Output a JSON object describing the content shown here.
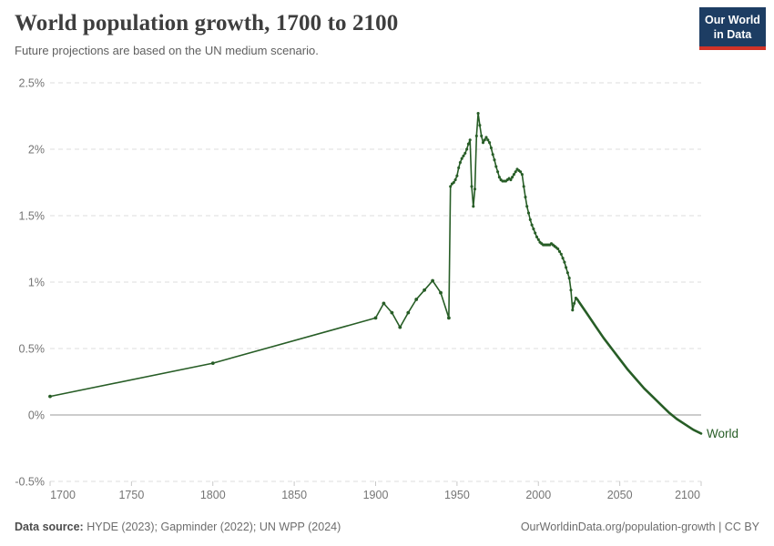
{
  "header": {
    "title": "World population growth, 1700 to 2100",
    "subtitle": "Future projections are based on the UN medium scenario.",
    "logo": {
      "line1": "Our World",
      "line2": "in Data",
      "bg_color": "#1d3d63",
      "accent_color": "#d13328"
    }
  },
  "footer": {
    "source_label": "Data source:",
    "sources": " HYDE (2023); Gapminder (2022); UN WPP (2024)",
    "attribution": "OurWorldinData.org/population-growth | CC BY"
  },
  "chart_data": {
    "type": "line",
    "title": "World population growth, 1700 to 2100",
    "subtitle": "Future projections are based on the UN medium scenario.",
    "unit": "%",
    "xlim": [
      1700,
      2100
    ],
    "ylim": [
      -0.5,
      2.5
    ],
    "x_ticks": [
      1700,
      1750,
      1800,
      1850,
      1900,
      1950,
      2000,
      2050,
      2100
    ],
    "y_ticks": [
      {
        "value": 2.5,
        "label": "2.5%"
      },
      {
        "value": 2.0,
        "label": "2%"
      },
      {
        "value": 1.5,
        "label": "1.5%"
      },
      {
        "value": 1.0,
        "label": "1%"
      },
      {
        "value": 0.5,
        "label": "0.5%"
      },
      {
        "value": 0.0,
        "label": "0%"
      },
      {
        "value": -0.5,
        "label": "-0.5%"
      }
    ],
    "grid": "horizontal-dashed",
    "zero_line": true,
    "legend": "end-of-line-label",
    "line_color": "#275d26",
    "projection_start_year": 2024,
    "series": [
      {
        "name": "World",
        "points": [
          [
            1700,
            0.14
          ],
          [
            1800,
            0.39
          ],
          [
            1900,
            0.73
          ],
          [
            1905,
            0.84
          ],
          [
            1910,
            0.77
          ],
          [
            1915,
            0.66
          ],
          [
            1920,
            0.77
          ],
          [
            1925,
            0.87
          ],
          [
            1930,
            0.94
          ],
          [
            1935,
            1.01
          ],
          [
            1940,
            0.92
          ],
          [
            1945,
            0.73
          ],
          [
            1946,
            1.72
          ],
          [
            1947,
            1.74
          ],
          [
            1948,
            1.75
          ],
          [
            1949,
            1.77
          ],
          [
            1950,
            1.8
          ],
          [
            1951,
            1.86
          ],
          [
            1952,
            1.9
          ],
          [
            1953,
            1.93
          ],
          [
            1954,
            1.95
          ],
          [
            1955,
            1.97
          ],
          [
            1956,
            2.0
          ],
          [
            1957,
            2.04
          ],
          [
            1958,
            2.07
          ],
          [
            1959,
            1.72
          ],
          [
            1960,
            1.57
          ],
          [
            1961,
            1.7
          ],
          [
            1962,
            2.1
          ],
          [
            1963,
            2.27
          ],
          [
            1964,
            2.18
          ],
          [
            1965,
            2.1
          ],
          [
            1966,
            2.05
          ],
          [
            1967,
            2.07
          ],
          [
            1968,
            2.09
          ],
          [
            1969,
            2.07
          ],
          [
            1970,
            2.05
          ],
          [
            1971,
            2.01
          ],
          [
            1972,
            1.96
          ],
          [
            1973,
            1.92
          ],
          [
            1974,
            1.87
          ],
          [
            1975,
            1.83
          ],
          [
            1976,
            1.79
          ],
          [
            1977,
            1.77
          ],
          [
            1978,
            1.76
          ],
          [
            1979,
            1.76
          ],
          [
            1980,
            1.76
          ],
          [
            1981,
            1.77
          ],
          [
            1982,
            1.78
          ],
          [
            1983,
            1.77
          ],
          [
            1984,
            1.79
          ],
          [
            1985,
            1.81
          ],
          [
            1986,
            1.83
          ],
          [
            1987,
            1.85
          ],
          [
            1988,
            1.84
          ],
          [
            1989,
            1.83
          ],
          [
            1990,
            1.81
          ],
          [
            1991,
            1.72
          ],
          [
            1992,
            1.64
          ],
          [
            1993,
            1.57
          ],
          [
            1994,
            1.52
          ],
          [
            1995,
            1.47
          ],
          [
            1996,
            1.43
          ],
          [
            1997,
            1.4
          ],
          [
            1998,
            1.37
          ],
          [
            1999,
            1.34
          ],
          [
            2000,
            1.32
          ],
          [
            2001,
            1.3
          ],
          [
            2002,
            1.29
          ],
          [
            2003,
            1.28
          ],
          [
            2004,
            1.28
          ],
          [
            2005,
            1.28
          ],
          [
            2006,
            1.28
          ],
          [
            2007,
            1.28
          ],
          [
            2008,
            1.29
          ],
          [
            2009,
            1.28
          ],
          [
            2010,
            1.27
          ],
          [
            2011,
            1.26
          ],
          [
            2012,
            1.25
          ],
          [
            2013,
            1.23
          ],
          [
            2014,
            1.21
          ],
          [
            2015,
            1.18
          ],
          [
            2016,
            1.15
          ],
          [
            2017,
            1.11
          ],
          [
            2018,
            1.07
          ],
          [
            2019,
            1.03
          ],
          [
            2020,
            0.94
          ],
          [
            2021,
            0.79
          ],
          [
            2022,
            0.84
          ],
          [
            2023,
            0.88
          ],
          [
            2024,
            0.87
          ],
          [
            2025,
            0.85
          ],
          [
            2030,
            0.76
          ],
          [
            2035,
            0.67
          ],
          [
            2040,
            0.58
          ],
          [
            2045,
            0.5
          ],
          [
            2050,
            0.42
          ],
          [
            2055,
            0.34
          ],
          [
            2060,
            0.27
          ],
          [
            2065,
            0.2
          ],
          [
            2070,
            0.14
          ],
          [
            2075,
            0.08
          ],
          [
            2080,
            0.02
          ],
          [
            2085,
            -0.03
          ],
          [
            2090,
            -0.07
          ],
          [
            2095,
            -0.11
          ],
          [
            2100,
            -0.14
          ]
        ]
      }
    ]
  }
}
